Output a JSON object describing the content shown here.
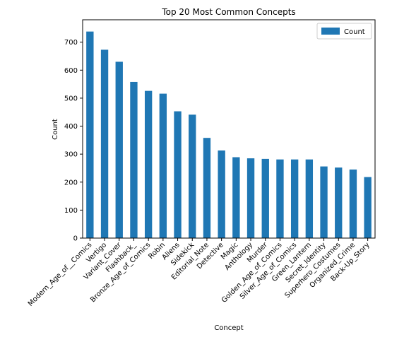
{
  "chart_data": {
    "type": "bar",
    "title": "Top 20 Most Common Concepts",
    "xlabel": "Concept",
    "ylabel": "Count",
    "ylim": [
      0,
      780
    ],
    "yticks": [
      0,
      100,
      200,
      300,
      400,
      500,
      600,
      700
    ],
    "grid": false,
    "legend_position": "top-right",
    "colors": {
      "bar": "#1f77b4"
    },
    "categories": [
      "Modern_Age_of__Comics",
      "Vertigo",
      "Variant_Cover",
      "Flashback_",
      "Bronze_Age_of_Comics",
      "Robin",
      "Aliens",
      "Sidekick",
      "Editorial_Note",
      "Detective",
      "Magic",
      "Anthology",
      "Murder",
      "Golden_Age_of_Comics",
      "Silver_Age_of_Comics",
      "Green_Lantern",
      "Secret_Identity",
      "Superhero_Costumes",
      "Organized_Crime",
      "Back-Up_Story"
    ],
    "series": [
      {
        "name": "Count",
        "values": [
          738,
          673,
          630,
          558,
          526,
          516,
          453,
          441,
          358,
          313,
          289,
          285,
          283,
          281,
          281,
          281,
          256,
          252,
          245,
          218
        ]
      }
    ]
  }
}
